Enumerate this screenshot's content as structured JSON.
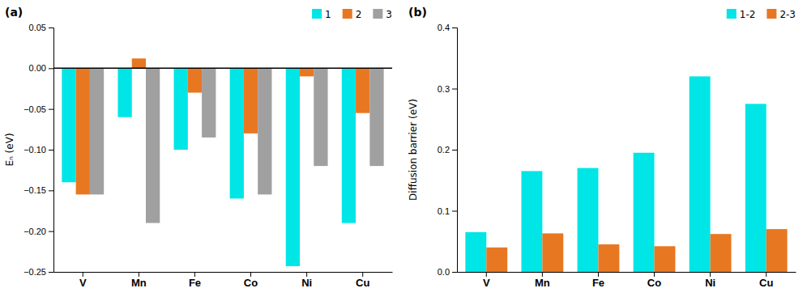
{
  "chart_data": [
    {
      "type": "bar",
      "title": "(a)",
      "ylabel": "Eₙ (eV)",
      "categories": [
        "V",
        "Mn",
        "Fe",
        "Co",
        "Ni",
        "Cu"
      ],
      "series": [
        {
          "name": "1",
          "color": "#00E5E5",
          "values": [
            -0.14,
            -0.06,
            -0.1,
            -0.16,
            -0.243,
            -0.19
          ]
        },
        {
          "name": "2",
          "color": "#E87722",
          "values": [
            -0.155,
            0.012,
            -0.03,
            -0.08,
            -0.01,
            -0.055
          ]
        },
        {
          "name": "3",
          "color": "#A0A0A0",
          "values": [
            -0.155,
            -0.19,
            -0.085,
            -0.155,
            -0.12,
            -0.12
          ]
        }
      ],
      "ylim": [
        -0.25,
        0.05
      ],
      "yticks": [
        {
          "value": -0.25,
          "label": "−0.25"
        },
        {
          "value": -0.2,
          "label": "−0.20"
        },
        {
          "value": -0.15,
          "label": "−0.15"
        },
        {
          "value": -0.1,
          "label": "−0.10"
        },
        {
          "value": -0.05,
          "label": "−0.05"
        },
        {
          "value": 0.0,
          "label": "0.00"
        },
        0.05
      ],
      "grid": false,
      "legend": "upper right"
    },
    {
      "type": "bar",
      "title": "(b)",
      "ylabel": "Diffusion barrier (eV)",
      "categories": [
        "V",
        "Mn",
        "Fe",
        "Co",
        "Ni",
        "Cu"
      ],
      "series": [
        {
          "name": "1-2",
          "color": "#00E5E5",
          "values": [
            0.065,
            0.165,
            0.17,
            0.195,
            0.32,
            0.275
          ]
        },
        {
          "name": "2-3",
          "color": "#E87722",
          "values": [
            0.04,
            0.063,
            0.045,
            0.042,
            0.062,
            0.07
          ]
        }
      ],
      "ylim": [
        0,
        0.4
      ],
      "yticks": [
        {
          "value": 0.0,
          "label": "0.0"
        },
        0.1,
        0.2,
        0.3,
        0.4
      ],
      "grid": false,
      "legend": "upper right"
    }
  ]
}
